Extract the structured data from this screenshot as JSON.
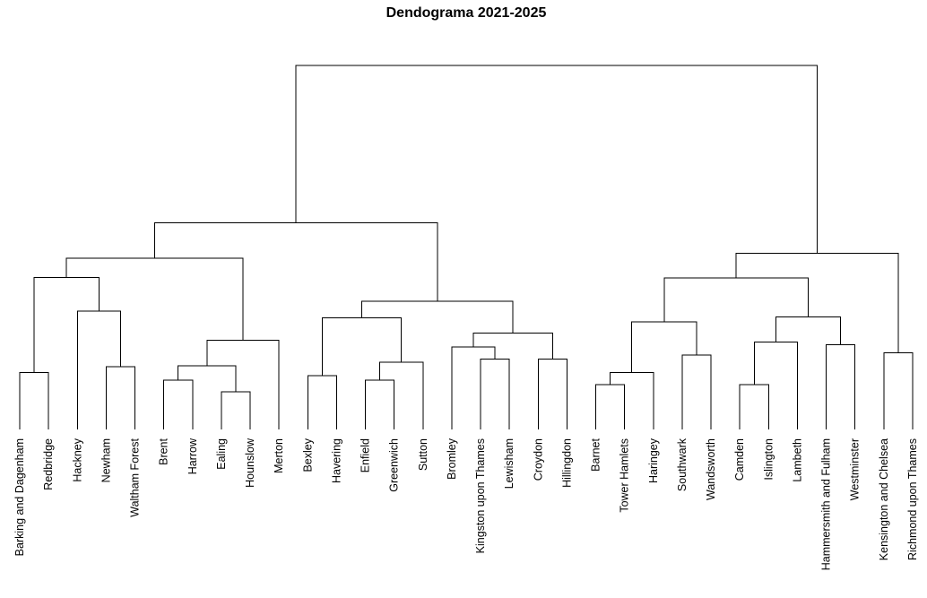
{
  "chart_data": {
    "type": "dendrogram",
    "title": "Dendograma 2021-2025",
    "leaves": [
      "Barking and Dagenham",
      "Redbridge",
      "Hackney",
      "Newham",
      "Waltham Forest",
      "Brent",
      "Harrow",
      "Ealing",
      "Hounslow",
      "Merton",
      "Bexley",
      "Havering",
      "Enfield",
      "Greenwich",
      "Sutton",
      "Bromley",
      "Kingston upon Thames",
      "Lewisham",
      "Croydon",
      "Hillingdon",
      "Barnet",
      "Tower Hamlets",
      "Haringey",
      "Southwark",
      "Wandsworth",
      "Camden",
      "Islington",
      "Lambeth",
      "Hammersmith and Fulham",
      "Westminster",
      "Kensington and Chelsea",
      "Richmond upon Thames"
    ],
    "merge_heights_note": "Heights in relative units (leaves at 0, root at 1).",
    "merges": [
      {
        "id": "A",
        "left": 0,
        "right": 1,
        "height": 0.156
      },
      {
        "id": "B",
        "left": 3,
        "right": 4,
        "height": 0.172
      },
      {
        "id": "C",
        "left": 2,
        "right": "B",
        "height": 0.325
      },
      {
        "id": "D",
        "left": "A",
        "right": "C",
        "height": 0.417
      },
      {
        "id": "E",
        "left": 5,
        "right": 6,
        "height": 0.135
      },
      {
        "id": "F",
        "left": 7,
        "right": 8,
        "height": 0.103
      },
      {
        "id": "G",
        "left": "E",
        "right": "F",
        "height": 0.175
      },
      {
        "id": "H",
        "left": "G",
        "right": 9,
        "height": 0.245
      },
      {
        "id": "I",
        "left": "D",
        "right": "H",
        "height": 0.471
      },
      {
        "id": "J",
        "left": 10,
        "right": 11,
        "height": 0.148
      },
      {
        "id": "K",
        "left": 12,
        "right": 13,
        "height": 0.135
      },
      {
        "id": "L",
        "left": "K",
        "right": 14,
        "height": 0.185
      },
      {
        "id": "M",
        "left": "J",
        "right": "L",
        "height": 0.307
      },
      {
        "id": "N",
        "left": 16,
        "right": 17,
        "height": 0.193
      },
      {
        "id": "O",
        "left": 15,
        "right": "N",
        "height": 0.226
      },
      {
        "id": "P",
        "left": 18,
        "right": 19,
        "height": 0.193
      },
      {
        "id": "Q",
        "left": "O",
        "right": "P",
        "height": 0.265
      },
      {
        "id": "R",
        "left": "M",
        "right": "Q",
        "height": 0.352
      },
      {
        "id": "S",
        "left": "I",
        "right": "R",
        "height": 0.568
      },
      {
        "id": "T",
        "left": 20,
        "right": 21,
        "height": 0.123
      },
      {
        "id": "U",
        "left": "T",
        "right": 22,
        "height": 0.156
      },
      {
        "id": "V",
        "left": 23,
        "right": 24,
        "height": 0.204
      },
      {
        "id": "W",
        "left": "U",
        "right": "V",
        "height": 0.296
      },
      {
        "id": "X",
        "left": 25,
        "right": 26,
        "height": 0.123
      },
      {
        "id": "Y",
        "left": "X",
        "right": 27,
        "height": 0.24
      },
      {
        "id": "Z",
        "left": 28,
        "right": 29,
        "height": 0.233
      },
      {
        "id": "AA",
        "left": "Y",
        "right": "Z",
        "height": 0.309
      },
      {
        "id": "AB",
        "left": "W",
        "right": "AA",
        "height": 0.416
      },
      {
        "id": "AC",
        "left": 30,
        "right": 31,
        "height": 0.21
      },
      {
        "id": "AD",
        "left": "AB",
        "right": "AC",
        "height": 0.484
      },
      {
        "id": "ROOT",
        "left": "S",
        "right": "AD",
        "height": 1.0
      }
    ]
  }
}
